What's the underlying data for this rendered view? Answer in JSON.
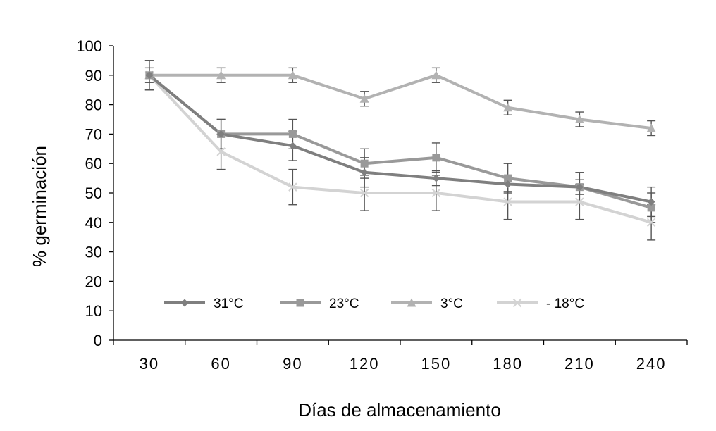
{
  "chart_data": {
    "type": "line",
    "title": "",
    "xlabel": "Días de almacenamiento",
    "ylabel": "% germinación",
    "categories": [
      "30",
      "60",
      "90",
      "120",
      "150",
      "180",
      "210",
      "240"
    ],
    "ylim": [
      0,
      100
    ],
    "yticks": [
      0,
      10,
      20,
      30,
      40,
      50,
      60,
      70,
      80,
      90,
      100
    ],
    "grid": false,
    "legend_position": "bottom-inside",
    "series": [
      {
        "name": "31°C",
        "marker": "diamond",
        "color": "#7f7f7f",
        "values": [
          90,
          70,
          66,
          57,
          55,
          53,
          52,
          47
        ],
        "errors": [
          5,
          5,
          5,
          5,
          2.5,
          2.5,
          2.5,
          5
        ]
      },
      {
        "name": "23°C",
        "marker": "square",
        "color": "#999999",
        "values": [
          90,
          70,
          70,
          60,
          62,
          55,
          52,
          45
        ],
        "errors": [
          5,
          5,
          5,
          5,
          5,
          5,
          5,
          5
        ]
      },
      {
        "name": "3°C",
        "marker": "triangle",
        "color": "#b2b2b2",
        "values": [
          90,
          90,
          90,
          82,
          90,
          79,
          75,
          72
        ],
        "errors": [
          2.5,
          2.5,
          2.5,
          2.5,
          2.5,
          2.5,
          2.5,
          2.5
        ]
      },
      {
        "name": "- 18°C",
        "marker": "x",
        "color": "#d3d3d3",
        "values": [
          90,
          64,
          52,
          50,
          50,
          47,
          47,
          40
        ],
        "errors": [
          5,
          6,
          6,
          6,
          6,
          6,
          6,
          6
        ]
      }
    ]
  }
}
